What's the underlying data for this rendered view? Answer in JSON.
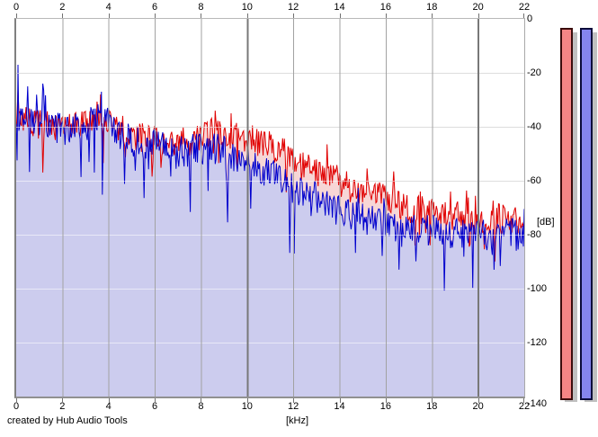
{
  "credit": "created by Hub Audio Tools",
  "axes": {
    "x_label": "[kHz]",
    "y_label": "[dB]",
    "x_tick_values": [
      0,
      2,
      4,
      6,
      8,
      10,
      12,
      14,
      16,
      18,
      20,
      22
    ],
    "x_tick_labels": [
      "0",
      "2",
      "4",
      "6",
      "8",
      "10",
      "12",
      "14",
      "16",
      "18",
      "20",
      "22"
    ],
    "y_tick_values": [
      0,
      -20,
      -40,
      -60,
      -80,
      -100,
      -120,
      -140
    ],
    "y_tick_labels": [
      "0",
      "-20",
      "-40",
      "-60",
      "-80",
      "-100",
      "-120",
      "-140"
    ]
  },
  "chart_data": {
    "type": "area",
    "title": "",
    "xlabel": "[kHz]",
    "ylabel": "[dB]",
    "xlim": [
      0,
      22
    ],
    "ylim": [
      -140,
      0
    ],
    "grid": "on",
    "legend": "none",
    "x_step": 0.5,
    "samples_per_khz": 26,
    "grid_minor_v_color": "#a2a2a2",
    "grid_major_v_color": "#787878",
    "grid_h_under_color": "#b4b4b4",
    "grid_h_over_color": "rgba(255,255,255,0.55)",
    "series": [
      {
        "name": "red-channel-spectrum",
        "stroke": "#e00000",
        "fill": "#f7d6d6",
        "mean_db": [
          -37,
          -38,
          -39,
          -40,
          -40,
          -40,
          -39,
          -35,
          -37,
          -41,
          -43,
          -44,
          -45,
          -46,
          -47,
          -46,
          -44,
          -42,
          -42,
          -44,
          -44,
          -46,
          -47,
          -49,
          -53,
          -55,
          -57,
          -58,
          -60,
          -62,
          -64,
          -65,
          -67,
          -68,
          -70,
          -71,
          -72,
          -72,
          -73,
          -73,
          -74,
          -74,
          -74,
          -74,
          -74
        ],
        "noise": {
          "amp": 5.5,
          "down_prob": 0.05,
          "down_amp": 13,
          "up_prob": 0.05,
          "up_amp": 9
        },
        "seed": 7,
        "peaks": [
          {
            "x": 0.06,
            "db": -26
          },
          {
            "x": 3.65,
            "db": -28
          },
          {
            "x": 8.6,
            "db": -34
          },
          {
            "x": 9.3,
            "db": -35
          },
          {
            "x": 18.8,
            "db": -64
          }
        ]
      },
      {
        "name": "blue-channel-spectrum",
        "stroke": "#0000cd",
        "fill": "#ccccee",
        "mean_db": [
          -36,
          -37,
          -38,
          -40,
          -41,
          -41,
          -40,
          -37,
          -39,
          -43,
          -45,
          -46,
          -47,
          -48,
          -49,
          -49,
          -48,
          -48,
          -49,
          -51,
          -52,
          -55,
          -57,
          -60,
          -63,
          -65,
          -67,
          -69,
          -71,
          -73,
          -74,
          -75,
          -76,
          -77,
          -77,
          -78,
          -78,
          -79,
          -79,
          -79,
          -80,
          -80,
          -80,
          -80,
          -81
        ],
        "noise": {
          "amp": 6,
          "down_prob": 0.07,
          "down_amp": 24,
          "up_prob": 0.04,
          "up_amp": 9
        },
        "seed": 99,
        "peaks": [
          {
            "x": 0.07,
            "db": -17
          },
          {
            "x": 0.5,
            "db": -25
          },
          {
            "x": 1.15,
            "db": -24
          },
          {
            "x": 3.7,
            "db": -27
          }
        ]
      }
    ]
  },
  "meters": {
    "track_color": "#c0c0c0",
    "top_db": -4,
    "bars": [
      {
        "name": "left-channel-level-meter",
        "fill": "#f58585",
        "border": "#3a0c0c"
      },
      {
        "name": "right-channel-level-meter",
        "fill": "#8585ee",
        "border": "#0c0c3a"
      }
    ]
  }
}
